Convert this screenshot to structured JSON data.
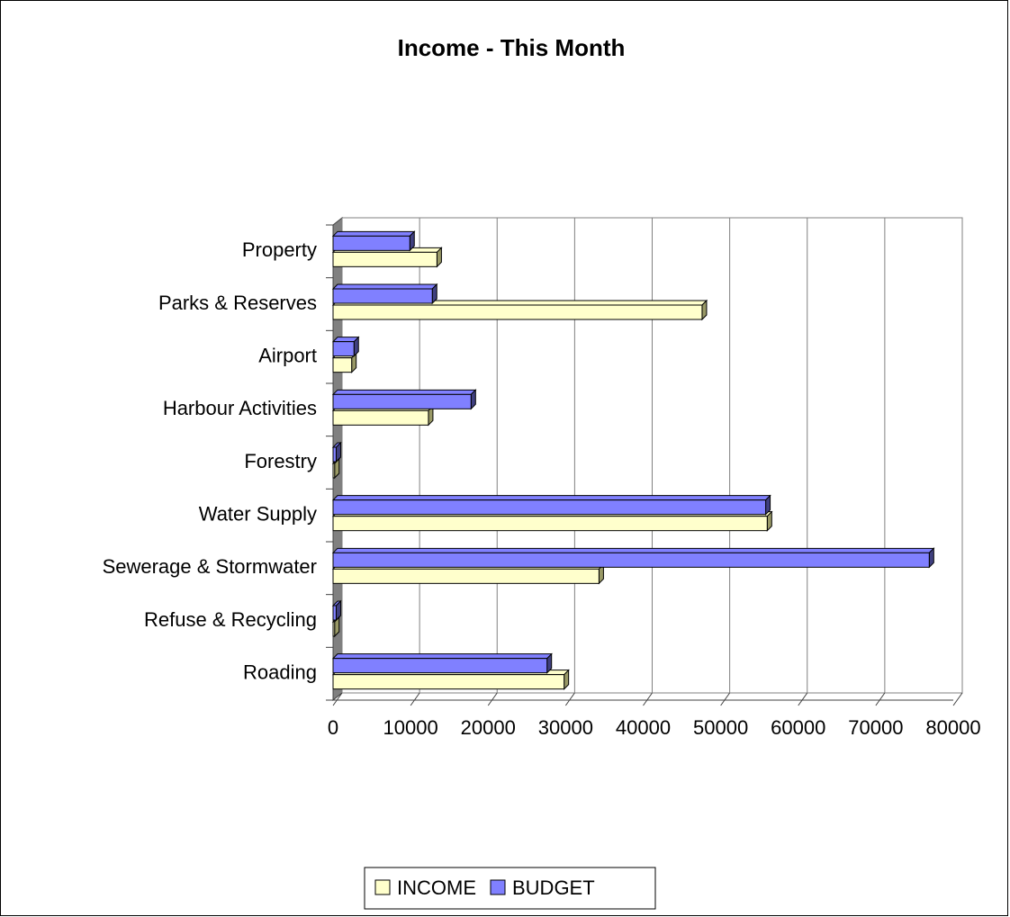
{
  "chart_data": {
    "type": "bar3d_horizontal",
    "title": "Income - This Month",
    "categories": [
      "Roading",
      "Refuse & Recycling",
      "Sewerage & Stormwater",
      "Water Supply",
      "Forestry",
      "Harbour Activities",
      "Airport",
      "Parks & Reserves",
      "Property"
    ],
    "series": [
      {
        "name": "INCOME",
        "color": "#ffffcc",
        "values": [
          29800,
          200,
          34300,
          56000,
          200,
          12300,
          2400,
          47600,
          13400
        ]
      },
      {
        "name": "BUDGET",
        "color": "#8080ff",
        "values": [
          27600,
          400,
          76900,
          55800,
          400,
          17800,
          2700,
          12800,
          9900
        ]
      }
    ],
    "xlim": [
      0,
      80000
    ],
    "xticks": [
      0,
      10000,
      20000,
      30000,
      40000,
      50000,
      60000,
      70000,
      80000
    ],
    "grid": true,
    "legend": "bottom"
  }
}
